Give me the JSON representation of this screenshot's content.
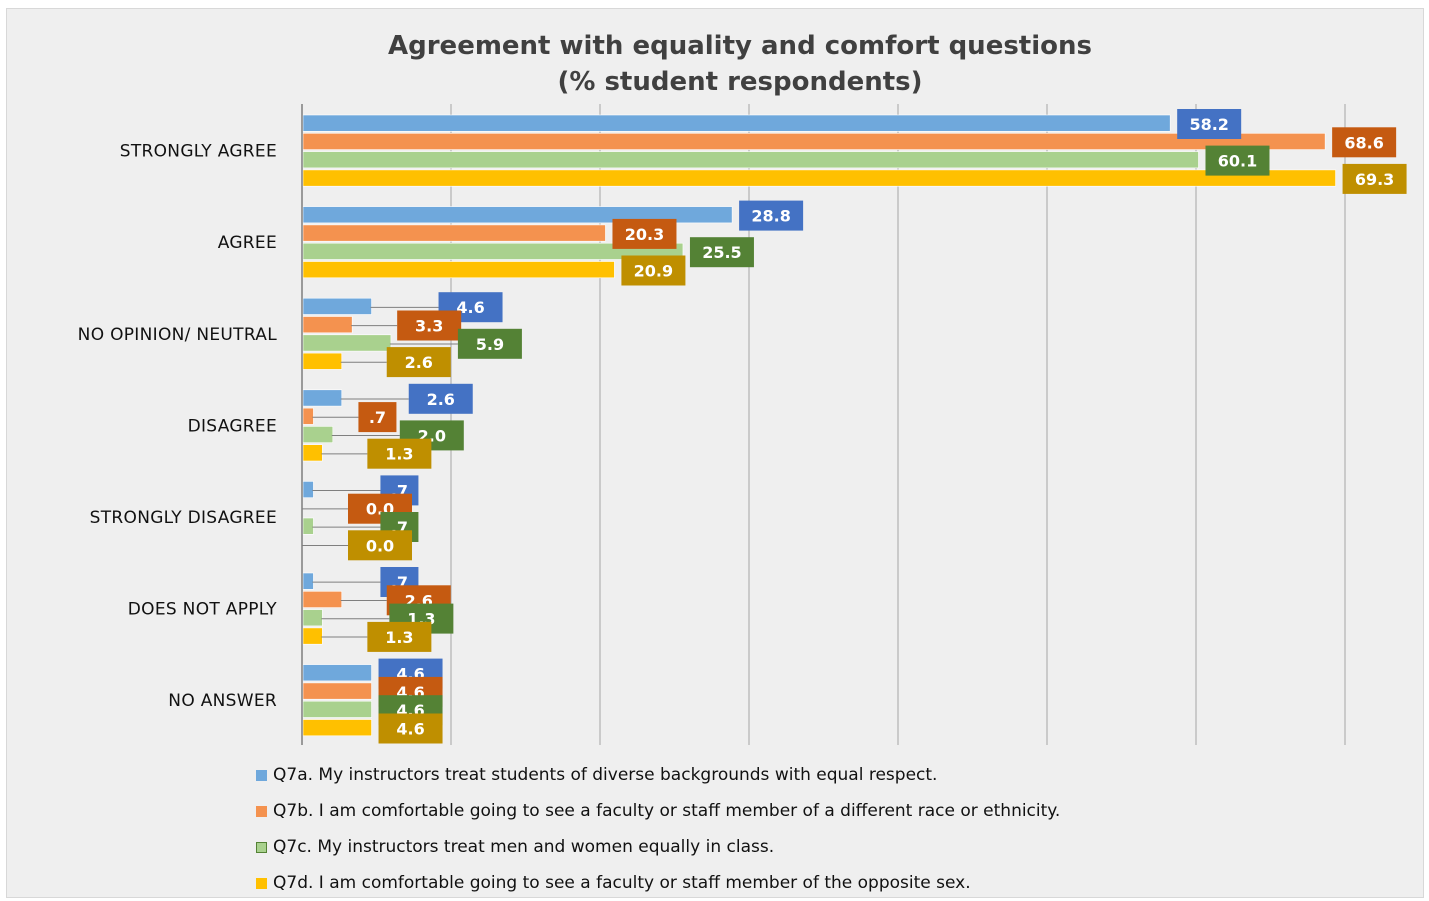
{
  "chart_data": {
    "type": "bar",
    "orientation": "horizontal",
    "title": [
      "Agreement with equality and comfort questions",
      "(% student respondents)"
    ],
    "categories": [
      "STRONGLY AGREE",
      "AGREE",
      "NO OPINION/ NEUTRAL",
      "DISAGREE",
      "STRONGLY DISAGREE",
      "DOES NOT APPLY",
      "NO ANSWER"
    ],
    "xlim": [
      0,
      75
    ],
    "grid": "vertical",
    "legend_position": "bottom",
    "series": [
      {
        "name": "Q7a. My instructors treat students of diverse backgrounds with equal respect.",
        "color": "#6fa8dc",
        "label_color": "#4472c4",
        "values": [
          58.2,
          28.8,
          4.6,
          2.6,
          0.7,
          0.7,
          4.6
        ],
        "labels": [
          "58.2",
          "28.8",
          "4.6",
          "2.6",
          ".7",
          ".7",
          "4.6"
        ]
      },
      {
        "name": "Q7b. I am comfortable going to see a faculty or staff member of a different race or ethnicity.",
        "color": "#f4924f",
        "label_color": "#c55a11",
        "values": [
          68.6,
          20.3,
          3.3,
          0.7,
          0.0,
          2.6,
          4.6
        ],
        "labels": [
          "68.6",
          "20.3",
          "3.3",
          ".7",
          "0.0",
          "2.6",
          "4.6"
        ]
      },
      {
        "name": "Q7c. My instructors treat men and women equally in class.",
        "color": "#a9d18e",
        "label_color": "#548235",
        "values": [
          60.1,
          25.5,
          5.9,
          2.0,
          0.7,
          1.3,
          4.6
        ],
        "labels": [
          "60.1",
          "25.5",
          "5.9",
          "2.0",
          ".7",
          "1.3",
          "4.6"
        ]
      },
      {
        "name": "Q7d. I am comfortable going to see a faculty or staff member of the opposite sex.",
        "color": "#ffc000",
        "label_color": "#bf8f00",
        "values": [
          69.3,
          20.9,
          2.6,
          1.3,
          0.0,
          1.3,
          4.6
        ],
        "labels": [
          "69.3",
          "20.9",
          "2.6",
          "1.3",
          "0.0",
          "1.3",
          "4.6"
        ]
      }
    ]
  }
}
